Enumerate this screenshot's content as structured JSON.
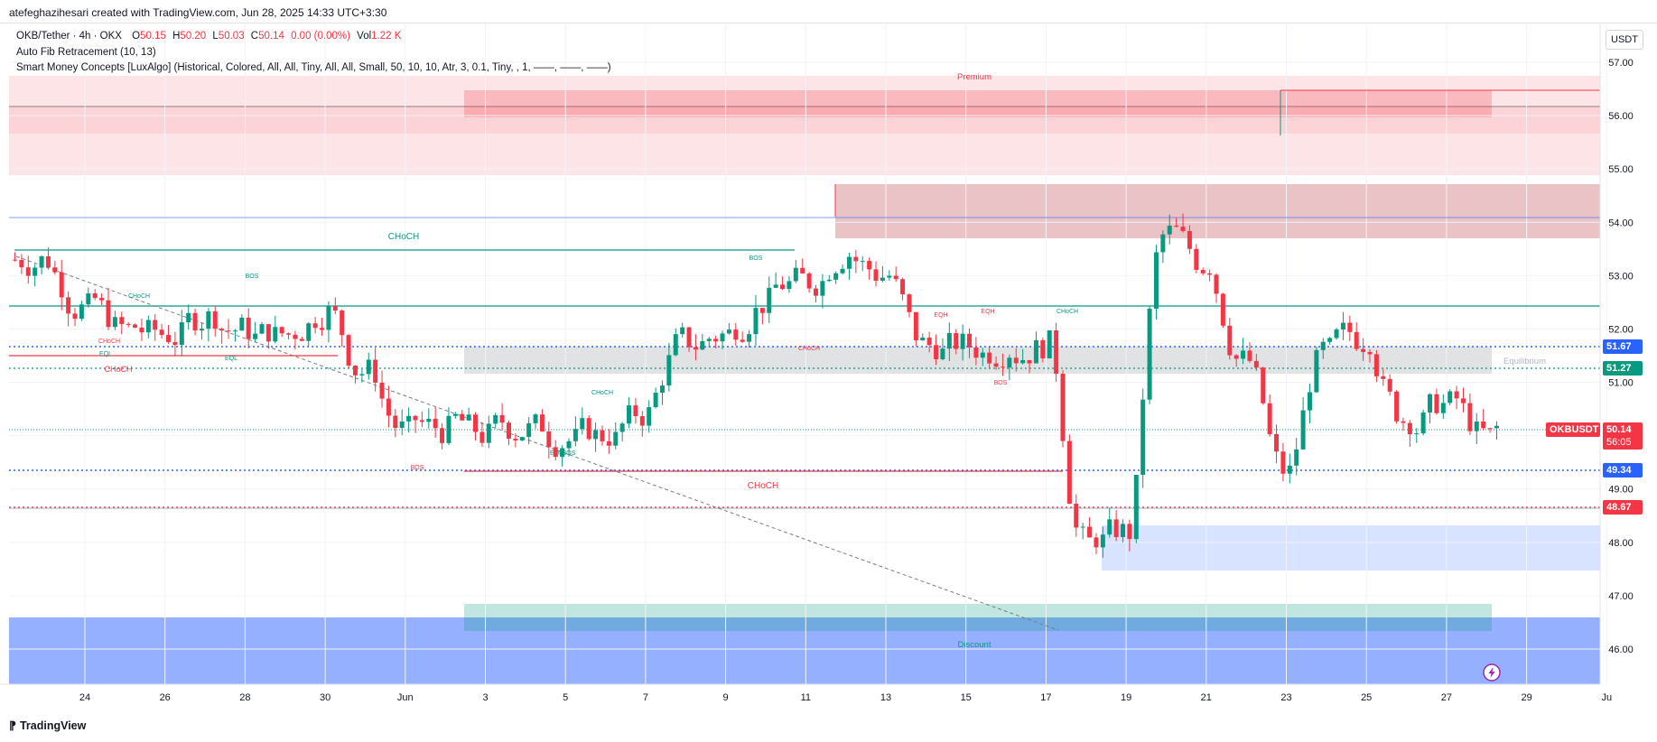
{
  "header": {
    "text": "atefeghazihesari created with TradingView.com, Jun 28, 2025 14:33 UTC+3:30"
  },
  "legend": {
    "symbol": "OKB/Tether · 4h · OKX",
    "o_label": "O",
    "o_value": "50.15",
    "h_label": "H",
    "h_value": "50.20",
    "l_label": "L",
    "l_value": "50.03",
    "c_label": "C",
    "c_value": "50.14",
    "change": "0.00 (0.00%)",
    "vol_label": "Vol",
    "vol_value": "1.22 K",
    "indicator1": "Auto Fib Retracement (10, 13)",
    "indicator2": "Smart Money Concepts [LuxAlgo] (Historical, Colored, All, All, Tiny, All, All, Small, 50, 10, 10, Atr, 3, 0.1, Tiny, , 1, ——, ——, ——)"
  },
  "currency": "USDT",
  "price_axis": {
    "ticks": [
      "57.00",
      "56.00",
      "55.00",
      "54.00",
      "53.00",
      "52.00",
      "51.00",
      "50.00",
      "49.00",
      "48.00",
      "47.00",
      "46.00"
    ]
  },
  "time_axis": {
    "ticks": [
      "24",
      "26",
      "28",
      "30",
      "Jun",
      "3",
      "5",
      "7",
      "9",
      "11",
      "13",
      "15",
      "17",
      "19",
      "21",
      "23",
      "25",
      "27",
      "29",
      "Ju"
    ]
  },
  "price_labels": [
    {
      "value": "51.67",
      "color": "#2962ff"
    },
    {
      "value": "51.27",
      "color": "#089981"
    },
    {
      "value": "49.34",
      "color": "#2962ff"
    },
    {
      "value": "48.67",
      "color": "#f23645"
    }
  ],
  "last_price": {
    "symbol": "OKBUSDT",
    "value": "50.14",
    "countdown": "56:05",
    "color": "#f23645"
  },
  "zones": {
    "premium": "Premium",
    "equilibrium": "Equilibrium",
    "discount": "Discount"
  },
  "structure_labels": [
    "CHoCH",
    "CHoCH",
    "CHoCH",
    "CHoCH",
    "CHoCH",
    "CHoCH",
    "BOS",
    "BOS",
    "BOS",
    "BOS",
    "BOS",
    "EQL",
    "EQL",
    "EQL",
    "EQH",
    "EQH",
    "CHoCH",
    "CHoCH"
  ],
  "colors": {
    "bull": "#089981",
    "bear": "#f23645",
    "premium": "#f23645",
    "discount": "#2962ff"
  },
  "footer": {
    "logo_text": "TradingView"
  },
  "chart_data": {
    "type": "candlestick",
    "title": "OKB/Tether · 4h · OKX",
    "x_range": [
      "May 22, 2025",
      "Jun 29, 2025"
    ],
    "ylim": [
      45.4,
      57.4
    ],
    "grid": true,
    "candles_approx_close": [
      {
        "date": "May 22",
        "close": 53.3
      },
      {
        "date": "May 23",
        "close": 52.4
      },
      {
        "date": "May 24",
        "close": 52.0
      },
      {
        "date": "May 25",
        "close": 51.9
      },
      {
        "date": "May 26",
        "close": 52.2
      },
      {
        "date": "May 27",
        "close": 52.0
      },
      {
        "date": "May 28",
        "close": 51.9
      },
      {
        "date": "May 29",
        "close": 52.3
      },
      {
        "date": "May 30",
        "close": 51.2
      },
      {
        "date": "May 31",
        "close": 50.1
      },
      {
        "date": "Jun 1",
        "close": 50.1
      },
      {
        "date": "Jun 2",
        "close": 50.0
      },
      {
        "date": "Jun 3",
        "close": 50.1
      },
      {
        "date": "Jun 4",
        "close": 49.9
      },
      {
        "date": "Jun 5",
        "close": 50.0
      },
      {
        "date": "Jun 6",
        "close": 50.4
      },
      {
        "date": "Jun 7",
        "close": 51.8
      },
      {
        "date": "Jun 8",
        "close": 51.9
      },
      {
        "date": "Jun 9",
        "close": 52.5
      },
      {
        "date": "Jun 10",
        "close": 52.9
      },
      {
        "date": "Jun 11",
        "close": 53.4
      },
      {
        "date": "Jun 12",
        "close": 53.0
      },
      {
        "date": "Jun 13",
        "close": 51.7
      },
      {
        "date": "Jun 14",
        "close": 51.7
      },
      {
        "date": "Jun 15",
        "close": 51.6
      },
      {
        "date": "Jun 16",
        "close": 51.7
      },
      {
        "date": "Jun 17",
        "close": 48.0
      },
      {
        "date": "Jun 18",
        "close": 48.2
      },
      {
        "date": "Jun 19",
        "close": 53.8
      },
      {
        "date": "Jun 20",
        "close": 53.2
      },
      {
        "date": "Jun 21",
        "close": 51.4
      },
      {
        "date": "Jun 22",
        "close": 49.3
      },
      {
        "date": "Jun 23",
        "close": 51.6
      },
      {
        "date": "Jun 24",
        "close": 51.8
      },
      {
        "date": "Jun 25",
        "close": 50.3
      },
      {
        "date": "Jun 26",
        "close": 50.6
      },
      {
        "date": "Jun 27",
        "close": 50.0
      },
      {
        "date": "Jun 28",
        "close": 50.14
      }
    ],
    "horizontal_levels": [
      51.67,
      51.27,
      49.34,
      48.67
    ],
    "last_price": 50.14
  }
}
